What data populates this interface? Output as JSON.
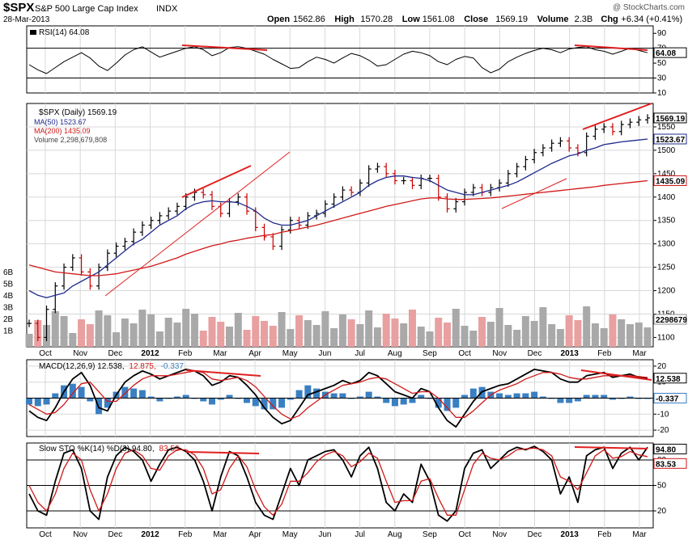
{
  "header": {
    "symbol": "$SPX",
    "name": "S&P 500 Large Cap Index",
    "exchange": "INDX",
    "date": "28-Mar-2013",
    "watermark": "@ StockCharts.com",
    "quote": [
      {
        "label": "Open",
        "value": "1562.86"
      },
      {
        "label": "High",
        "value": "1570.28"
      },
      {
        "label": "Low",
        "value": "1561.08"
      },
      {
        "label": "Close",
        "value": "1569.19"
      },
      {
        "label": "Volume",
        "value": "2.3B"
      },
      {
        "label": "Chg",
        "value": "+6.34 (+0.41%)"
      }
    ]
  },
  "colors": {
    "price_bar": "#000000",
    "ma50": "#1e2a8c",
    "ma200": "#d01818",
    "trendline_red": "#e02020",
    "volume_up": "#a9a9a9",
    "volume_down": "#e8a0a0",
    "macd_hist": "#3a7fc1",
    "panel_border": "#000000",
    "grid": "#d8d8d8"
  },
  "chart_data": [
    {
      "type": "line",
      "panel": "rsi",
      "legend": "RSI(14) 64.08",
      "ylim": [
        10,
        100
      ],
      "y_ticks": [
        "90",
        "70",
        "50",
        "30",
        "10"
      ],
      "reference_lines": [
        70,
        30
      ],
      "value_tag": "64.08",
      "series": [
        {
          "name": "RSI(14)",
          "values": [
            48,
            41,
            36,
            44,
            52,
            58,
            64,
            57,
            46,
            40,
            50,
            61,
            68,
            72,
            65,
            58,
            62,
            66,
            70,
            72,
            68,
            60,
            64,
            71,
            72,
            70,
            66,
            62,
            55,
            49,
            43,
            44,
            52,
            58,
            55,
            50,
            57,
            63,
            60,
            54,
            46,
            48,
            55,
            62,
            66,
            64,
            60,
            52,
            48,
            55,
            59,
            57,
            44,
            37,
            42,
            52,
            58,
            63,
            67,
            70,
            68,
            64,
            69,
            71,
            72,
            68,
            66,
            62,
            66,
            70,
            67,
            64
          ]
        }
      ]
    },
    {
      "type": "ohlc",
      "panel": "price",
      "legend": [
        {
          "key": "spx",
          "text": "$SPX (Daily) 1569.19"
        },
        {
          "key": "ma50",
          "text": "MA(50) 1523.67"
        },
        {
          "key": "ma200",
          "text": "MA(200) 1435.09"
        },
        {
          "key": "volume",
          "text": "Volume 2,298,679,808"
        }
      ],
      "ylim": [
        1080,
        1600
      ],
      "y_ticks": [
        "1550",
        "1500",
        "1450",
        "1400",
        "1350",
        "1300",
        "1250",
        "1200",
        "1150",
        "1100"
      ],
      "volume_ticks": [
        "6B",
        "5B",
        "4B",
        "3B",
        "2B",
        "1B"
      ],
      "value_tags": [
        {
          "key": "close",
          "text": "1569.19"
        },
        {
          "key": "ma50",
          "text": "1523.67"
        },
        {
          "key": "ma200",
          "text": "1435.09"
        },
        {
          "key": "volume",
          "text": "2298679"
        }
      ],
      "x_labels": [
        "Oct",
        "Nov",
        "Dec",
        "2012",
        "Feb",
        "Mar",
        "Apr",
        "May",
        "Jun",
        "Jul",
        "Aug",
        "Sep",
        "Oct",
        "Nov",
        "Dec",
        "2013",
        "Feb",
        "Mar"
      ],
      "series": [
        {
          "name": "$SPX",
          "values": [
            1130,
            1100,
            1160,
            1210,
            1250,
            1270,
            1240,
            1210,
            1250,
            1280,
            1295,
            1305,
            1325,
            1340,
            1350,
            1360,
            1370,
            1380,
            1400,
            1410,
            1405,
            1380,
            1365,
            1390,
            1400,
            1370,
            1335,
            1315,
            1295,
            1330,
            1350,
            1340,
            1360,
            1365,
            1385,
            1400,
            1415,
            1410,
            1430,
            1460,
            1465,
            1450,
            1435,
            1435,
            1425,
            1440,
            1440,
            1400,
            1375,
            1390,
            1410,
            1420,
            1410,
            1420,
            1430,
            1450,
            1465,
            1480,
            1495,
            1505,
            1515,
            1520,
            1505,
            1495,
            1530,
            1545,
            1550,
            1540,
            1555,
            1560,
            1565,
            1569
          ]
        },
        {
          "name": "MA(50)",
          "values": [
            1200,
            1190,
            1185,
            1190,
            1195,
            1210,
            1220,
            1230,
            1240,
            1255,
            1270,
            1285,
            1300,
            1310,
            1325,
            1340,
            1350,
            1360,
            1375,
            1385,
            1390,
            1392,
            1390,
            1390,
            1388,
            1380,
            1370,
            1355,
            1345,
            1340,
            1340,
            1345,
            1350,
            1360,
            1370,
            1380,
            1390,
            1400,
            1410,
            1425,
            1435,
            1442,
            1445,
            1445,
            1442,
            1440,
            1435,
            1425,
            1415,
            1410,
            1405,
            1405,
            1410,
            1415,
            1420,
            1425,
            1432,
            1442,
            1452,
            1462,
            1472,
            1480,
            1488,
            1492,
            1500,
            1505,
            1512,
            1515,
            1518,
            1520,
            1522,
            1524
          ]
        },
        {
          "name": "MA(200)",
          "values": [
            1255,
            1250,
            1245,
            1240,
            1238,
            1236,
            1234,
            1232,
            1232,
            1234,
            1236,
            1240,
            1244,
            1248,
            1252,
            1258,
            1264,
            1270,
            1278,
            1284,
            1290,
            1296,
            1300,
            1305,
            1308,
            1312,
            1315,
            1318,
            1320,
            1325,
            1328,
            1332,
            1336,
            1340,
            1345,
            1350,
            1355,
            1360,
            1365,
            1370,
            1375,
            1380,
            1384,
            1388,
            1392,
            1396,
            1398,
            1398,
            1396,
            1395,
            1395,
            1396,
            1397,
            1398,
            1400,
            1402,
            1404,
            1406,
            1408,
            1410,
            1412,
            1414,
            1416,
            1418,
            1420,
            1422,
            1425,
            1427,
            1429,
            1431,
            1433,
            1435
          ]
        }
      ]
    },
    {
      "type": "line",
      "panel": "macd",
      "legend": [
        {
          "key": "macd",
          "text": "MACD(12,26,9) 12.538,"
        },
        {
          "key": "signal",
          "text": "12.875,"
        },
        {
          "key": "hist",
          "text": "-0.337"
        }
      ],
      "ylim": [
        -24,
        24
      ],
      "y_ticks": [
        "20",
        "10",
        "0",
        "-10",
        "-20"
      ],
      "value_tags": [
        {
          "key": "macd",
          "text": "12.538"
        },
        {
          "key": "hist",
          "text": "-0.337"
        }
      ],
      "series": [
        {
          "name": "MACD",
          "values": [
            -8,
            -12,
            -14,
            -6,
            4,
            12,
            16,
            8,
            -6,
            -8,
            2,
            10,
            14,
            17,
            15,
            12,
            14,
            16,
            18,
            17,
            14,
            8,
            10,
            14,
            13,
            8,
            2,
            -6,
            -12,
            -16,
            -14,
            -6,
            2,
            4,
            6,
            8,
            11,
            9,
            11,
            16,
            14,
            9,
            4,
            2,
            0,
            6,
            4,
            -6,
            -14,
            -18,
            -10,
            -2,
            4,
            6,
            8,
            9,
            12,
            15,
            18,
            17,
            16,
            12,
            10,
            10,
            14,
            15,
            16,
            13,
            14,
            15,
            13,
            12.5
          ]
        },
        {
          "name": "Signal",
          "values": [
            -4,
            -7,
            -10,
            -9,
            -4,
            3,
            9,
            10,
            4,
            -2,
            -2,
            3,
            8,
            12,
            14,
            14,
            14,
            15,
            16,
            17,
            16,
            12,
            11,
            12,
            13,
            11,
            7,
            1,
            -5,
            -10,
            -13,
            -11,
            -6,
            -2,
            2,
            5,
            8,
            9,
            10,
            12,
            13,
            12,
            9,
            6,
            3,
            4,
            4,
            0,
            -6,
            -12,
            -12,
            -8,
            -3,
            2,
            5,
            7,
            9,
            12,
            14,
            16,
            16,
            15,
            13,
            12,
            12,
            13,
            14,
            14,
            14,
            14,
            13.5,
            12.9
          ]
        },
        {
          "name": "Histogram",
          "values": [
            -4,
            -5,
            -4,
            3,
            8,
            9,
            7,
            -2,
            -10,
            -6,
            4,
            7,
            6,
            5,
            1,
            -2,
            0,
            1,
            2,
            0,
            -2,
            -4,
            -1,
            2,
            0,
            -3,
            -5,
            -7,
            -7,
            -6,
            -1,
            5,
            8,
            6,
            4,
            3,
            3,
            0,
            1,
            4,
            1,
            -3,
            -5,
            -4,
            -3,
            2,
            0,
            -6,
            -8,
            -6,
            2,
            6,
            7,
            4,
            3,
            2,
            3,
            3,
            4,
            1,
            0,
            -3,
            -3,
            -2,
            2,
            2,
            2,
            -1,
            0,
            1,
            -0.5,
            -0.4
          ]
        }
      ]
    },
    {
      "type": "line",
      "panel": "stochastic",
      "legend": [
        {
          "key": "k",
          "text": "Slow STO %K(14) %D(3) 94.80,"
        },
        {
          "key": "d",
          "text": "83.53"
        }
      ],
      "ylim": [
        0,
        100
      ],
      "y_ticks": [
        "80",
        "50",
        "20"
      ],
      "reference_lines": [
        80,
        50,
        20
      ],
      "value_tags": [
        {
          "key": "k",
          "text": "94.80"
        },
        {
          "key": "d",
          "text": "83.53"
        }
      ],
      "x_labels": [
        "Oct",
        "Nov",
        "Dec",
        "2012",
        "Feb",
        "Mar",
        "Apr",
        "May",
        "Jun",
        "Jul",
        "Aug",
        "Sep",
        "Oct",
        "Nov",
        "Dec",
        "2013",
        "Feb",
        "Mar"
      ],
      "series": [
        {
          "name": "%K",
          "values": [
            40,
            20,
            15,
            55,
            88,
            92,
            70,
            20,
            10,
            60,
            85,
            95,
            90,
            80,
            55,
            75,
            92,
            95,
            90,
            80,
            55,
            20,
            60,
            90,
            85,
            60,
            30,
            15,
            10,
            40,
            70,
            50,
            80,
            85,
            90,
            92,
            80,
            60,
            85,
            95,
            70,
            30,
            20,
            40,
            30,
            75,
            55,
            15,
            8,
            20,
            70,
            88,
            92,
            70,
            80,
            90,
            95,
            92,
            96,
            90,
            80,
            40,
            60,
            30,
            85,
            92,
            95,
            70,
            88,
            95,
            80,
            95
          ]
        },
        {
          "name": "%D",
          "values": [
            50,
            30,
            20,
            40,
            70,
            88,
            80,
            45,
            20,
            40,
            70,
            88,
            92,
            85,
            70,
            68,
            85,
            92,
            92,
            86,
            70,
            40,
            45,
            70,
            85,
            72,
            45,
            25,
            15,
            28,
            55,
            55,
            65,
            78,
            86,
            90,
            85,
            72,
            78,
            88,
            82,
            55,
            30,
            32,
            32,
            55,
            58,
            35,
            15,
            15,
            45,
            75,
            88,
            82,
            80,
            85,
            92,
            93,
            94,
            92,
            85,
            60,
            55,
            45,
            65,
            85,
            92,
            82,
            84,
            90,
            86,
            84
          ]
        }
      ]
    }
  ]
}
